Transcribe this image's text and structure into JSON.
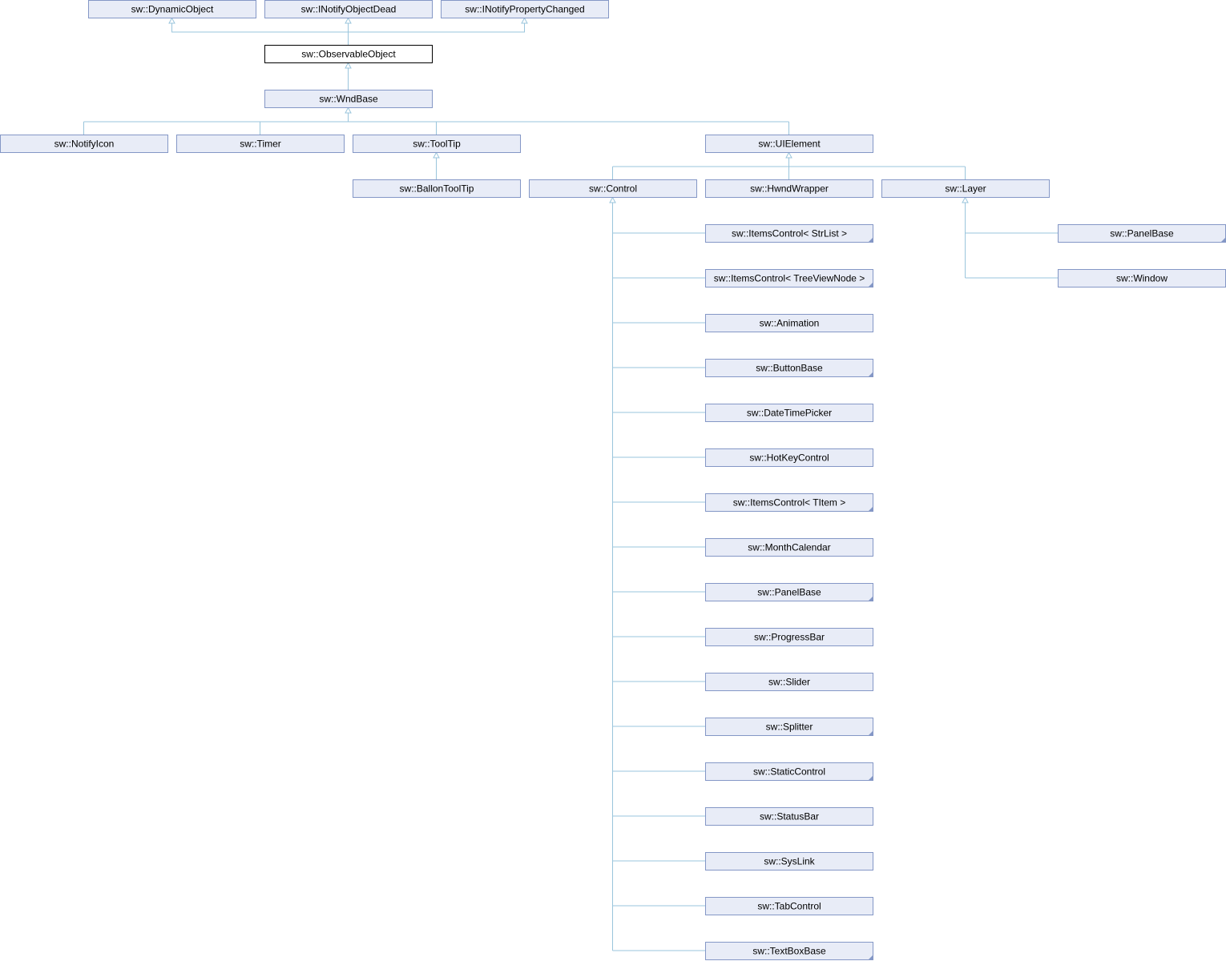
{
  "colors": {
    "node_fill": "#e8ecf7",
    "node_border": "#8497c6",
    "current_fill": "#ffffff",
    "current_border": "#000000",
    "edge": "#9ac5dc",
    "arrow_fill": "#ffffff"
  },
  "nodes": [
    {
      "id": "dynobj",
      "label": "sw::DynamicObject",
      "current": false,
      "has_more": false
    },
    {
      "id": "inotdead",
      "label": "sw::INotifyObjectDead",
      "current": false,
      "has_more": false
    },
    {
      "id": "inotprop",
      "label": "sw::INotifyPropertyChanged",
      "current": false,
      "has_more": false
    },
    {
      "id": "observ",
      "label": "sw::ObservableObject",
      "current": true,
      "has_more": false
    },
    {
      "id": "wndbase",
      "label": "sw::WndBase",
      "current": false,
      "has_more": false
    },
    {
      "id": "notifyicon",
      "label": "sw::NotifyIcon",
      "current": false,
      "has_more": false
    },
    {
      "id": "timer",
      "label": "sw::Timer",
      "current": false,
      "has_more": false
    },
    {
      "id": "tooltip",
      "label": "sw::ToolTip",
      "current": false,
      "has_more": false
    },
    {
      "id": "uielement",
      "label": "sw::UIElement",
      "current": false,
      "has_more": false
    },
    {
      "id": "ballon",
      "label": "sw::BallonToolTip",
      "current": false,
      "has_more": false
    },
    {
      "id": "control",
      "label": "sw::Control",
      "current": false,
      "has_more": false
    },
    {
      "id": "hwndwrap",
      "label": "sw::HwndWrapper",
      "current": false,
      "has_more": false
    },
    {
      "id": "layer",
      "label": "sw::Layer",
      "current": false,
      "has_more": false
    },
    {
      "id": "ic_str",
      "label": "sw::ItemsControl< StrList >",
      "current": false,
      "has_more": true
    },
    {
      "id": "ic_tree",
      "label": "sw::ItemsControl< TreeViewNode >",
      "current": false,
      "has_more": true
    },
    {
      "id": "anim",
      "label": "sw::Animation",
      "current": false,
      "has_more": false
    },
    {
      "id": "btnbase",
      "label": "sw::ButtonBase",
      "current": false,
      "has_more": true
    },
    {
      "id": "dtp",
      "label": "sw::DateTimePicker",
      "current": false,
      "has_more": false
    },
    {
      "id": "hotkey",
      "label": "sw::HotKeyControl",
      "current": false,
      "has_more": false
    },
    {
      "id": "ic_titem",
      "label": "sw::ItemsControl< TItem >",
      "current": false,
      "has_more": true
    },
    {
      "id": "monthcal",
      "label": "sw::MonthCalendar",
      "current": false,
      "has_more": false
    },
    {
      "id": "panelbase_c",
      "label": "sw::PanelBase",
      "current": false,
      "has_more": true
    },
    {
      "id": "progress",
      "label": "sw::ProgressBar",
      "current": false,
      "has_more": false
    },
    {
      "id": "slider",
      "label": "sw::Slider",
      "current": false,
      "has_more": false
    },
    {
      "id": "splitter",
      "label": "sw::Splitter",
      "current": false,
      "has_more": true
    },
    {
      "id": "static",
      "label": "sw::StaticControl",
      "current": false,
      "has_more": true
    },
    {
      "id": "statusbar",
      "label": "sw::StatusBar",
      "current": false,
      "has_more": false
    },
    {
      "id": "syslink",
      "label": "sw::SysLink",
      "current": false,
      "has_more": false
    },
    {
      "id": "tabctrl",
      "label": "sw::TabControl",
      "current": false,
      "has_more": false
    },
    {
      "id": "textbox",
      "label": "sw::TextBoxBase",
      "current": false,
      "has_more": true
    },
    {
      "id": "panelbase_l",
      "label": "sw::PanelBase",
      "current": false,
      "has_more": true
    },
    {
      "id": "window",
      "label": "sw::Window",
      "current": false,
      "has_more": false
    }
  ],
  "edges": [
    {
      "parent": "dynobj",
      "child": "observ"
    },
    {
      "parent": "inotdead",
      "child": "observ"
    },
    {
      "parent": "inotprop",
      "child": "observ"
    },
    {
      "parent": "observ",
      "child": "wndbase"
    },
    {
      "parent": "wndbase",
      "child": "notifyicon"
    },
    {
      "parent": "wndbase",
      "child": "timer"
    },
    {
      "parent": "wndbase",
      "child": "tooltip"
    },
    {
      "parent": "wndbase",
      "child": "uielement"
    },
    {
      "parent": "tooltip",
      "child": "ballon"
    },
    {
      "parent": "uielement",
      "child": "control"
    },
    {
      "parent": "uielement",
      "child": "hwndwrap"
    },
    {
      "parent": "uielement",
      "child": "layer"
    },
    {
      "parent": "control",
      "child": "ic_str"
    },
    {
      "parent": "control",
      "child": "ic_tree"
    },
    {
      "parent": "control",
      "child": "anim"
    },
    {
      "parent": "control",
      "child": "btnbase"
    },
    {
      "parent": "control",
      "child": "dtp"
    },
    {
      "parent": "control",
      "child": "hotkey"
    },
    {
      "parent": "control",
      "child": "ic_titem"
    },
    {
      "parent": "control",
      "child": "monthcal"
    },
    {
      "parent": "control",
      "child": "panelbase_c"
    },
    {
      "parent": "control",
      "child": "progress"
    },
    {
      "parent": "control",
      "child": "slider"
    },
    {
      "parent": "control",
      "child": "splitter"
    },
    {
      "parent": "control",
      "child": "static"
    },
    {
      "parent": "control",
      "child": "statusbar"
    },
    {
      "parent": "control",
      "child": "syslink"
    },
    {
      "parent": "control",
      "child": "tabctrl"
    },
    {
      "parent": "control",
      "child": "textbox"
    },
    {
      "parent": "layer",
      "child": "panelbase_l"
    },
    {
      "parent": "layer",
      "child": "window"
    }
  ]
}
